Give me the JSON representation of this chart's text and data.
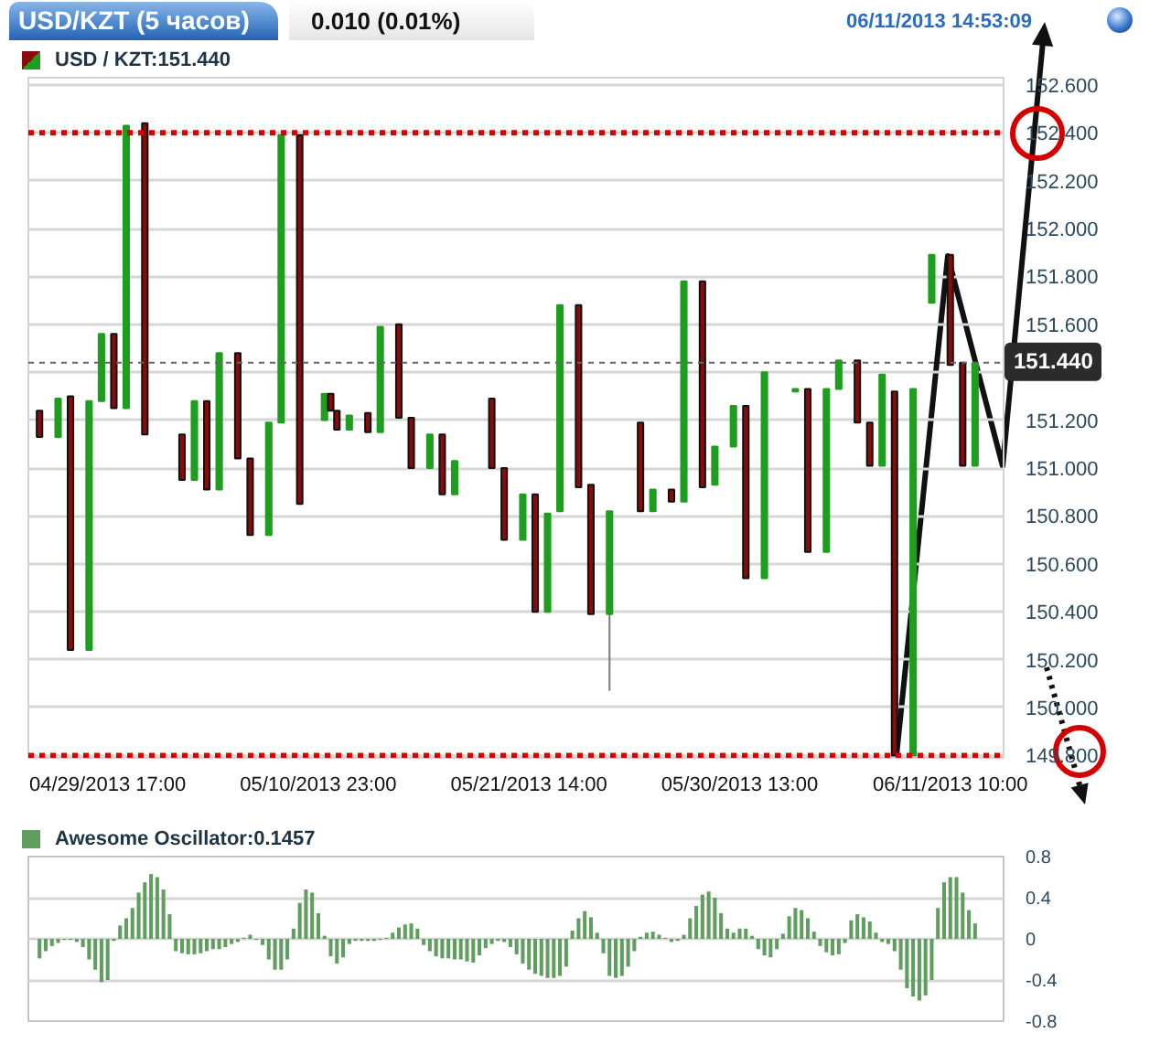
{
  "chart_data": [
    {
      "type": "candlestick",
      "title": "USD/KZT (5 часов)",
      "subtitle": "0.010 (0.01%)",
      "annotations": [
        "06/11/2013 14:53:09"
      ],
      "categories": [
        null,
        null,
        null,
        null,
        null,
        null,
        null,
        null,
        null,
        null,
        null,
        "04/29/2013 17:00",
        null,
        null,
        null,
        null,
        null,
        null,
        null,
        null,
        null,
        null,
        null,
        null,
        null,
        null,
        null,
        null,
        null,
        null,
        null,
        null,
        null,
        null,
        null,
        null,
        null,
        null,
        null,
        null,
        null,
        null,
        null,
        null,
        null,
        "05/10/2013 23:00",
        null,
        null,
        null,
        null,
        null,
        null,
        null,
        null,
        null,
        null,
        null,
        null,
        null,
        null,
        null,
        null,
        null,
        null,
        null,
        null,
        null,
        null,
        null,
        null,
        null,
        null,
        null,
        null,
        null,
        null,
        null,
        null,
        null,
        "05/21/2013 14:00",
        null,
        null,
        null,
        null,
        null,
        null,
        null,
        null,
        null,
        null,
        null,
        null,
        null,
        null,
        null,
        null,
        null,
        null,
        null,
        null,
        null,
        null,
        null,
        null,
        null,
        null,
        null,
        null,
        null,
        null,
        null,
        null,
        null,
        "05/30/2013 13:00",
        null,
        null,
        null,
        null,
        null,
        null,
        null,
        null,
        null,
        null,
        null,
        null,
        null,
        null,
        null,
        null,
        null,
        null,
        null,
        null,
        null,
        null,
        null,
        null,
        null,
        null,
        null,
        null,
        null,
        null,
        null,
        null,
        null,
        "06/11/2013 10:00",
        null,
        null,
        null,
        null
      ],
      "series": [
        {
          "name": "USD / KZT:151.440",
          "ohlc": [
            [
              151.24,
              151.24,
              151.13,
              151.13
            ],
            null,
            null,
            [
              151.13,
              151.29,
              151.13,
              151.29
            ],
            null,
            [
              151.3,
              151.3,
              150.24,
              150.24
            ],
            null,
            null,
            [
              150.24,
              151.28,
              150.24,
              151.28
            ],
            null,
            [
              151.28,
              151.56,
              151.28,
              151.56
            ],
            null,
            [
              151.56,
              151.56,
              151.25,
              151.25
            ],
            null,
            [
              151.25,
              152.43,
              151.25,
              152.43
            ],
            null,
            null,
            [
              152.44,
              152.44,
              151.14,
              151.14
            ],
            null,
            null,
            null,
            null,
            null,
            [
              151.14,
              151.14,
              150.95,
              150.95
            ],
            null,
            [
              150.95,
              151.28,
              150.95,
              151.28
            ],
            null,
            [
              151.28,
              151.28,
              150.91,
              150.91
            ],
            null,
            [
              150.91,
              151.48,
              150.91,
              151.48
            ],
            null,
            null,
            [
              151.48,
              151.48,
              151.04,
              151.04
            ],
            null,
            [
              151.04,
              151.04,
              150.72,
              150.72
            ],
            null,
            null,
            [
              150.72,
              151.19,
              150.72,
              151.19
            ],
            null,
            [
              151.19,
              152.39,
              151.19,
              152.39
            ],
            null,
            null,
            [
              152.39,
              152.39,
              150.85,
              150.85
            ],
            null,
            null,
            null,
            [
              151.2,
              151.31,
              151.2,
              151.31
            ],
            [
              151.31,
              151.31,
              151.24,
              151.24
            ],
            [
              151.24,
              151.24,
              151.16,
              151.16
            ],
            null,
            [
              151.16,
              151.22,
              151.16,
              151.22
            ],
            null,
            null,
            [
              151.23,
              151.23,
              151.15,
              151.15
            ],
            null,
            [
              151.15,
              151.59,
              151.15,
              151.59
            ],
            null,
            null,
            [
              151.6,
              151.6,
              151.21,
              151.21
            ],
            null,
            [
              151.21,
              151.21,
              151.0,
              151.0
            ],
            null,
            null,
            [
              151.0,
              151.14,
              151.0,
              151.14
            ],
            null,
            [
              151.14,
              151.14,
              150.89,
              150.89
            ],
            null,
            [
              150.89,
              151.03,
              150.89,
              151.03
            ],
            null,
            null,
            null,
            null,
            null,
            [
              151.29,
              151.29,
              151.0,
              151.0
            ],
            null,
            [
              151.0,
              151.0,
              150.7,
              150.7
            ],
            null,
            null,
            [
              150.7,
              150.89,
              150.7,
              150.89
            ],
            null,
            [
              150.89,
              150.89,
              150.4,
              150.4
            ],
            null,
            [
              150.4,
              150.81,
              150.4,
              150.81
            ],
            null,
            [
              150.82,
              151.68,
              150.82,
              151.68
            ],
            null,
            null,
            [
              151.68,
              151.68,
              150.92,
              150.92
            ],
            null,
            [
              150.93,
              150.93,
              150.39,
              150.39
            ],
            null,
            null,
            [
              150.39,
              150.82,
              150.07,
              150.82
            ],
            null,
            null,
            null,
            null,
            [
              151.19,
              151.19,
              150.82,
              150.82
            ],
            null,
            [
              150.82,
              150.91,
              150.82,
              150.91
            ],
            null,
            null,
            [
              150.91,
              150.91,
              150.86,
              150.86
            ],
            null,
            [
              150.86,
              151.78,
              150.86,
              151.78
            ],
            null,
            null,
            [
              151.78,
              151.78,
              150.92,
              150.92
            ],
            null,
            [
              150.93,
              151.09,
              150.93,
              151.09
            ],
            null,
            null,
            [
              151.09,
              151.26,
              151.09,
              151.26
            ],
            null,
            [
              151.26,
              151.26,
              150.54,
              150.54
            ],
            null,
            null,
            [
              150.54,
              151.4,
              150.54,
              151.4
            ],
            null,
            null,
            null,
            null,
            [
              151.32,
              151.33,
              151.32,
              151.33
            ],
            null,
            [
              151.33,
              151.33,
              150.65,
              150.65
            ],
            null,
            null,
            [
              150.65,
              151.33,
              150.65,
              151.33
            ],
            null,
            [
              151.33,
              151.45,
              151.33,
              151.45
            ],
            null,
            null,
            [
              151.45,
              151.45,
              151.19,
              151.19
            ],
            null,
            [
              151.19,
              151.19,
              151.01,
              151.01
            ],
            null,
            [
              151.01,
              151.39,
              151.01,
              151.39
            ],
            null,
            [
              151.32,
              151.32,
              149.8,
              149.8
            ],
            null,
            null,
            [
              149.8,
              151.33,
              149.8,
              151.33
            ],
            null,
            null,
            [
              151.69,
              151.89,
              151.69,
              151.89
            ],
            null,
            null,
            [
              151.89,
              151.89,
              151.43,
              151.43
            ],
            null,
            [
              151.44,
              151.44,
              151.01,
              151.01
            ],
            null,
            [
              151.01,
              151.44,
              151.01,
              151.44
            ]
          ],
          "colors": [
            "#8b0b0b",
            null,
            null,
            "#1e9e1e",
            null,
            "#8b0b0b",
            null,
            null,
            "#1e9e1e",
            null,
            "#1e9e1e",
            null,
            "#8b0b0b",
            null,
            "#1e9e1e",
            null,
            null,
            "#8b0b0b",
            null,
            null,
            null,
            null,
            null,
            "#8b0b0b",
            null,
            "#1e9e1e",
            null,
            "#8b0b0b",
            null,
            "#1e9e1e",
            null,
            null,
            "#8b0b0b",
            null,
            "#8b0b0b",
            null,
            null,
            "#1e9e1e",
            null,
            "#1e9e1e",
            null,
            null,
            "#8b0b0b",
            null,
            null,
            null,
            "#1e9e1e",
            "#8b0b0b",
            "#8b0b0b",
            null,
            "#1e9e1e",
            null,
            null,
            "#8b0b0b",
            null,
            "#1e9e1e",
            null,
            null,
            "#8b0b0b",
            null,
            "#8b0b0b",
            null,
            null,
            "#1e9e1e",
            null,
            "#8b0b0b",
            null,
            "#1e9e1e",
            null,
            null,
            null,
            null,
            null,
            "#8b0b0b",
            null,
            "#8b0b0b",
            null,
            null,
            "#1e9e1e",
            null,
            "#8b0b0b",
            null,
            "#1e9e1e",
            null,
            "#1e9e1e",
            null,
            null,
            "#8b0b0b",
            null,
            "#8b0b0b",
            null,
            null,
            "#1e9e1e",
            null,
            null,
            null,
            null,
            "#8b0b0b",
            null,
            "#1e9e1e",
            null,
            null,
            "#8b0b0b",
            null,
            "#1e9e1e",
            null,
            null,
            "#8b0b0b",
            null,
            "#1e9e1e",
            null,
            null,
            "#1e9e1e",
            null,
            "#8b0b0b",
            null,
            null,
            "#1e9e1e",
            null,
            null,
            null,
            null,
            "#1e9e1e",
            null,
            "#8b0b0b",
            null,
            null,
            "#1e9e1e",
            null,
            "#1e9e1e",
            null,
            null,
            "#8b0b0b",
            null,
            "#8b0b0b",
            null,
            "#1e9e1e",
            null,
            "#8b0b0b",
            null,
            null,
            "#1e9e1e",
            null,
            null,
            "#1e9e1e",
            null,
            null,
            "#8b0b0b",
            null,
            "#8b0b0b",
            null,
            "#1e9e1e"
          ]
        }
      ],
      "ylim": [
        149.79,
        152.63
      ],
      "yticks": [
        {
          "value": 149.8,
          "label": "149.800"
        },
        {
          "value": 150,
          "label": "150.000"
        },
        {
          "value": 150.2,
          "label": "150.200"
        },
        {
          "value": 150.4,
          "label": "150.400"
        },
        {
          "value": 150.6,
          "label": "150.600"
        },
        {
          "value": 150.8,
          "label": "150.800"
        },
        {
          "value": 151,
          "label": "151.000"
        },
        {
          "value": 151.2,
          "label": "151.200"
        },
        {
          "value": 151.4,
          "label": null
        },
        {
          "value": 151.6,
          "label": "151.600"
        },
        {
          "value": 151.8,
          "label": "151.800"
        },
        {
          "value": 152,
          "label": "152.000"
        },
        {
          "value": 152.2,
          "label": "152.200"
        },
        {
          "value": 152.4,
          "label": "152.400"
        },
        {
          "value": 152.6,
          "label": "152.600"
        }
      ],
      "grid": "y",
      "legend": "top left",
      "ref_lines": [
        {
          "axis": "y",
          "value": 152.4,
          "color": "#dd0000",
          "line_style": "dotted"
        },
        {
          "axis": "y",
          "value": 149.8,
          "color": "#dd0000",
          "line_style": "dotted"
        },
        {
          "axis": "y",
          "value": 151.44,
          "label": "151.440",
          "color": "#666666",
          "line_style": "dotted"
        }
      ]
    },
    {
      "type": "bar",
      "tick_labels": "y",
      "categories": [
        null,
        null,
        null,
        null,
        null,
        null,
        null,
        null,
        null,
        null,
        null,
        null,
        null,
        null,
        null,
        null,
        null,
        null,
        null,
        null,
        null,
        null,
        null,
        null,
        null,
        null,
        null,
        null,
        null,
        null,
        null,
        null,
        null,
        null,
        null,
        null,
        null,
        null,
        null,
        null,
        null,
        null,
        null,
        null,
        null,
        null,
        null,
        null,
        null,
        null,
        null,
        null,
        null,
        null,
        null,
        null,
        null,
        null,
        null,
        null,
        null,
        null,
        null,
        null,
        null,
        null,
        null,
        null,
        null,
        null,
        null,
        null,
        null,
        null,
        null,
        null,
        null,
        null,
        null,
        null,
        null,
        null,
        null,
        null,
        null,
        null,
        null,
        null,
        null,
        null,
        null,
        null,
        null,
        null,
        null,
        null,
        null,
        null,
        null,
        null,
        null,
        null,
        null,
        null,
        null,
        null,
        null,
        null,
        null,
        null,
        null,
        null,
        null,
        null,
        null,
        null,
        null,
        null,
        null,
        null,
        null,
        null,
        null,
        null,
        null,
        null,
        null,
        null,
        null,
        null,
        null,
        null,
        null,
        null,
        null,
        null,
        null,
        null,
        null,
        null,
        null,
        null,
        null,
        null,
        null,
        null,
        null,
        null,
        null,
        null,
        null,
        null
      ],
      "series": [
        {
          "name": "Awesome Oscillator:0.1457",
          "color": "#5f9e5f",
          "values": [
            -0.19,
            -0.12,
            -0.07,
            -0.04,
            -0.01,
            -0.01,
            -0.03,
            -0.08,
            -0.2,
            -0.3,
            -0.42,
            -0.4,
            -0.02,
            0.13,
            0.2,
            0.3,
            0.45,
            0.55,
            0.63,
            0.6,
            0.48,
            0.24,
            -0.12,
            -0.14,
            -0.15,
            -0.15,
            -0.14,
            -0.12,
            -0.1,
            -0.1,
            -0.08,
            -0.05,
            -0.03,
            0.01,
            0.04,
            -0.01,
            -0.06,
            -0.2,
            -0.3,
            -0.3,
            -0.2,
            0.1,
            0.35,
            0.48,
            0.45,
            0.25,
            0.03,
            -0.17,
            -0.24,
            -0.18,
            -0.05,
            -0.02,
            -0.02,
            -0.02,
            -0.02,
            -0.01,
            0.01,
            0.06,
            0.11,
            0.14,
            0.15,
            0.1,
            -0.06,
            -0.12,
            -0.17,
            -0.19,
            -0.19,
            -0.2,
            -0.2,
            -0.22,
            -0.23,
            -0.16,
            -0.09,
            -0.05,
            -0.02,
            -0.03,
            -0.08,
            -0.15,
            -0.24,
            -0.3,
            -0.34,
            -0.36,
            -0.38,
            -0.38,
            -0.36,
            -0.27,
            0.08,
            0.2,
            0.27,
            0.21,
            0.06,
            -0.14,
            -0.36,
            -0.38,
            -0.36,
            -0.27,
            -0.12,
            0.02,
            0.06,
            0.07,
            0.04,
            0.01,
            -0.03,
            -0.02,
            0.04,
            0.2,
            0.32,
            0.43,
            0.46,
            0.4,
            0.25,
            0.1,
            0.06,
            0.1,
            0.1,
            0.03,
            -0.1,
            -0.16,
            -0.18,
            -0.1,
            0.05,
            0.22,
            0.3,
            0.28,
            0.2,
            0.07,
            -0.07,
            -0.13,
            -0.16,
            -0.15,
            -0.04,
            0.18,
            0.24,
            0.21,
            0.17,
            0.06,
            -0.03,
            -0.05,
            -0.12,
            -0.3,
            -0.48,
            -0.56,
            -0.6,
            -0.55,
            -0.4,
            0.3,
            0.55,
            0.6,
            0.6,
            0.45,
            0.28,
            0.15
          ]
        }
      ],
      "ylim": [
        -0.8,
        0.8
      ],
      "yticks": [
        -0.8,
        -0.4,
        0,
        0.4,
        0.8
      ],
      "grid": "y",
      "legend": "top left"
    }
  ]
}
